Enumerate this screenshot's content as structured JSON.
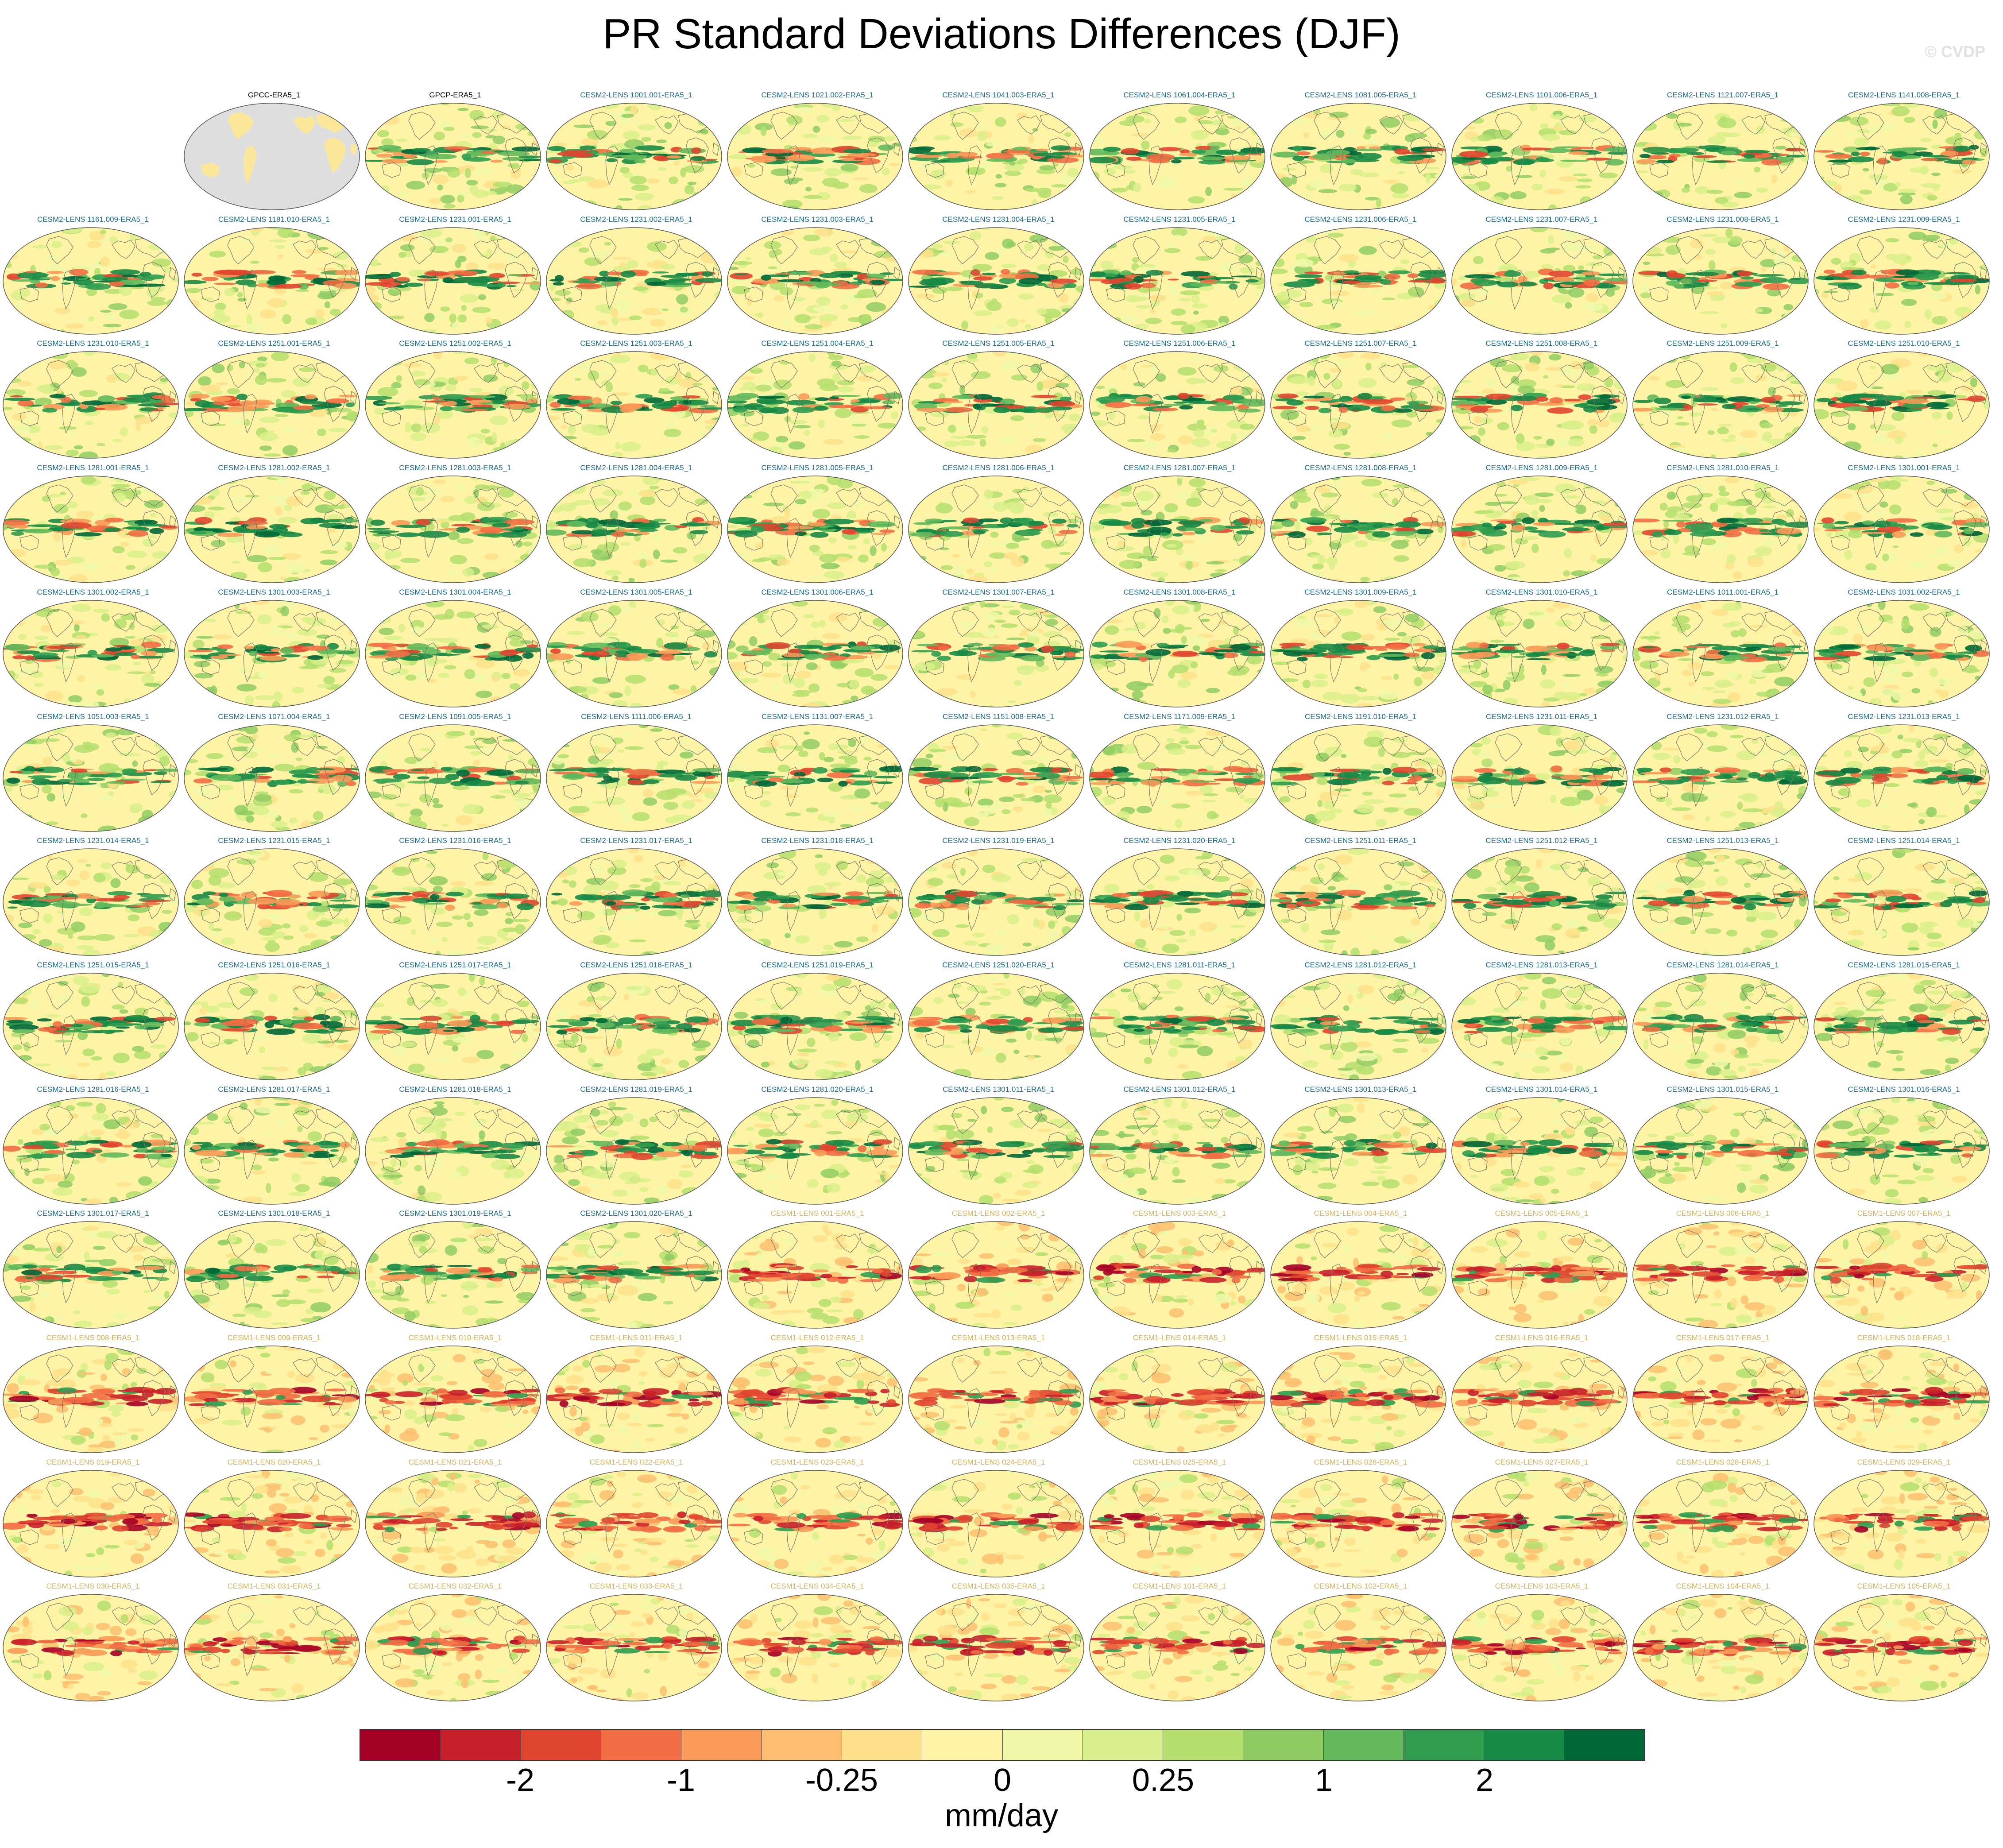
{
  "title": "PR Standard Deviations Differences (DJF)",
  "watermark": "© CVDP",
  "colorbar": {
    "colors": [
      "#a50026",
      "#c8202a",
      "#e0452f",
      "#f26d43",
      "#f99a58",
      "#fdbe70",
      "#fee08b",
      "#fff4a5",
      "#f0f8a8",
      "#d9ef8b",
      "#b4de6e",
      "#8fcb63",
      "#63b95c",
      "#2f9c4f",
      "#178a45",
      "#006837"
    ],
    "tick_labels": [
      "-2",
      "-1",
      "-0.25",
      "0",
      "0.25",
      "1",
      "2"
    ],
    "units": "mm/day"
  },
  "colors": {
    "obs_label": "#000000",
    "cesm2_label": "#1a6a8a",
    "cesm1_label": "#d6b35a"
  },
  "panels": [
    {
      "label": "GPCC-ERA5_1",
      "kind": "obs",
      "pattern": "land"
    },
    {
      "label": "GPCP-ERA5_1",
      "kind": "obs",
      "pattern": "mixed"
    },
    {
      "label": "CESM2-LENS 1001.001-ERA5_1",
      "kind": "cesm2",
      "pattern": "mixed"
    },
    {
      "label": "CESM2-LENS 1021.002-ERA5_1",
      "kind": "cesm2",
      "pattern": "mixed"
    },
    {
      "label": "CESM2-LENS 1041.003-ERA5_1",
      "kind": "cesm2",
      "pattern": "mixed"
    },
    {
      "label": "CESM2-LENS 1061.004-ERA5_1",
      "kind": "cesm2",
      "pattern": "mixed"
    },
    {
      "label": "CESM2-LENS 1081.005-ERA5_1",
      "kind": "cesm2",
      "pattern": "mixed"
    },
    {
      "label": "CESM2-LENS 1101.006-ERA5_1",
      "kind": "cesm2",
      "pattern": "mixed"
    },
    {
      "label": "CESM2-LENS 1121.007-ERA5_1",
      "kind": "cesm2",
      "pattern": "mixed"
    },
    {
      "label": "CESM2-LENS 1141.008-ERA5_1",
      "kind": "cesm2",
      "pattern": "mixed"
    },
    {
      "label": "CESM2-LENS 1161.009-ERA5_1",
      "kind": "cesm2",
      "pattern": "mixed"
    },
    {
      "label": "CESM2-LENS 1181.010-ERA5_1",
      "kind": "cesm2",
      "pattern": "mixed"
    },
    {
      "label": "CESM2-LENS 1231.001-ERA5_1",
      "kind": "cesm2",
      "pattern": "mixed"
    },
    {
      "label": "CESM2-LENS 1231.002-ERA5_1",
      "kind": "cesm2",
      "pattern": "mixed"
    },
    {
      "label": "CESM2-LENS 1231.003-ERA5_1",
      "kind": "cesm2",
      "pattern": "mixed"
    },
    {
      "label": "CESM2-LENS 1231.004-ERA5_1",
      "kind": "cesm2",
      "pattern": "mixed"
    },
    {
      "label": "CESM2-LENS 1231.005-ERA5_1",
      "kind": "cesm2",
      "pattern": "mixed"
    },
    {
      "label": "CESM2-LENS 1231.006-ERA5_1",
      "kind": "cesm2",
      "pattern": "mixed"
    },
    {
      "label": "CESM2-LENS 1231.007-ERA5_1",
      "kind": "cesm2",
      "pattern": "mixed"
    },
    {
      "label": "CESM2-LENS 1231.008-ERA5_1",
      "kind": "cesm2",
      "pattern": "mixed"
    },
    {
      "label": "CESM2-LENS 1231.009-ERA5_1",
      "kind": "cesm2",
      "pattern": "mixed"
    },
    {
      "label": "CESM2-LENS 1231.010-ERA5_1",
      "kind": "cesm2",
      "pattern": "mixed"
    },
    {
      "label": "CESM2-LENS 1251.001-ERA5_1",
      "kind": "cesm2",
      "pattern": "mixed"
    },
    {
      "label": "CESM2-LENS 1251.002-ERA5_1",
      "kind": "cesm2",
      "pattern": "mixed"
    },
    {
      "label": "CESM2-LENS 1251.003-ERA5_1",
      "kind": "cesm2",
      "pattern": "mixed"
    },
    {
      "label": "CESM2-LENS 1251.004-ERA5_1",
      "kind": "cesm2",
      "pattern": "mixed"
    },
    {
      "label": "CESM2-LENS 1251.005-ERA5_1",
      "kind": "cesm2",
      "pattern": "mixed"
    },
    {
      "label": "CESM2-LENS 1251.006-ERA5_1",
      "kind": "cesm2",
      "pattern": "mixed"
    },
    {
      "label": "CESM2-LENS 1251.007-ERA5_1",
      "kind": "cesm2",
      "pattern": "mixed"
    },
    {
      "label": "CESM2-LENS 1251.008-ERA5_1",
      "kind": "cesm2",
      "pattern": "mixed"
    },
    {
      "label": "CESM2-LENS 1251.009-ERA5_1",
      "kind": "cesm2",
      "pattern": "mixed"
    },
    {
      "label": "CESM2-LENS 1251.010-ERA5_1",
      "kind": "cesm2",
      "pattern": "mixed"
    },
    {
      "label": "CESM2-LENS 1281.001-ERA5_1",
      "kind": "cesm2",
      "pattern": "mixed"
    },
    {
      "label": "CESM2-LENS 1281.002-ERA5_1",
      "kind": "cesm2",
      "pattern": "mixed"
    },
    {
      "label": "CESM2-LENS 1281.003-ERA5_1",
      "kind": "cesm2",
      "pattern": "mixed"
    },
    {
      "label": "CESM2-LENS 1281.004-ERA5_1",
      "kind": "cesm2",
      "pattern": "mixed"
    },
    {
      "label": "CESM2-LENS 1281.005-ERA5_1",
      "kind": "cesm2",
      "pattern": "mixed"
    },
    {
      "label": "CESM2-LENS 1281.006-ERA5_1",
      "kind": "cesm2",
      "pattern": "mixed"
    },
    {
      "label": "CESM2-LENS 1281.007-ERA5_1",
      "kind": "cesm2",
      "pattern": "mixed"
    },
    {
      "label": "CESM2-LENS 1281.008-ERA5_1",
      "kind": "cesm2",
      "pattern": "mixed"
    },
    {
      "label": "CESM2-LENS 1281.009-ERA5_1",
      "kind": "cesm2",
      "pattern": "mixed"
    },
    {
      "label": "CESM2-LENS 1281.010-ERA5_1",
      "kind": "cesm2",
      "pattern": "mixed"
    },
    {
      "label": "CESM2-LENS 1301.001-ERA5_1",
      "kind": "cesm2",
      "pattern": "mixed"
    },
    {
      "label": "CESM2-LENS 1301.002-ERA5_1",
      "kind": "cesm2",
      "pattern": "mixed"
    },
    {
      "label": "CESM2-LENS 1301.003-ERA5_1",
      "kind": "cesm2",
      "pattern": "mixed"
    },
    {
      "label": "CESM2-LENS 1301.004-ERA5_1",
      "kind": "cesm2",
      "pattern": "mixed"
    },
    {
      "label": "CESM2-LENS 1301.005-ERA5_1",
      "kind": "cesm2",
      "pattern": "mixed"
    },
    {
      "label": "CESM2-LENS 1301.006-ERA5_1",
      "kind": "cesm2",
      "pattern": "mixed"
    },
    {
      "label": "CESM2-LENS 1301.007-ERA5_1",
      "kind": "cesm2",
      "pattern": "mixed"
    },
    {
      "label": "CESM2-LENS 1301.008-ERA5_1",
      "kind": "cesm2",
      "pattern": "mixed"
    },
    {
      "label": "CESM2-LENS 1301.009-ERA5_1",
      "kind": "cesm2",
      "pattern": "mixed"
    },
    {
      "label": "CESM2-LENS 1301.010-ERA5_1",
      "kind": "cesm2",
      "pattern": "mixed"
    },
    {
      "label": "CESM2-LENS 1011.001-ERA5_1",
      "kind": "cesm2",
      "pattern": "mixed"
    },
    {
      "label": "CESM2-LENS 1031.002-ERA5_1",
      "kind": "cesm2",
      "pattern": "mixed"
    },
    {
      "label": "CESM2-LENS 1051.003-ERA5_1",
      "kind": "cesm2",
      "pattern": "mixed"
    },
    {
      "label": "CESM2-LENS 1071.004-ERA5_1",
      "kind": "cesm2",
      "pattern": "mixed"
    },
    {
      "label": "CESM2-LENS 1091.005-ERA5_1",
      "kind": "cesm2",
      "pattern": "mixed"
    },
    {
      "label": "CESM2-LENS 1111.006-ERA5_1",
      "kind": "cesm2",
      "pattern": "mixed"
    },
    {
      "label": "CESM2-LENS 1131.007-ERA5_1",
      "kind": "cesm2",
      "pattern": "mixed"
    },
    {
      "label": "CESM2-LENS 1151.008-ERA5_1",
      "kind": "cesm2",
      "pattern": "mixed"
    },
    {
      "label": "CESM2-LENS 1171.009-ERA5_1",
      "kind": "cesm2",
      "pattern": "mixed"
    },
    {
      "label": "CESM2-LENS 1191.010-ERA5_1",
      "kind": "cesm2",
      "pattern": "mixed"
    },
    {
      "label": "CESM2-LENS 1231.011-ERA5_1",
      "kind": "cesm2",
      "pattern": "mixed"
    },
    {
      "label": "CESM2-LENS 1231.012-ERA5_1",
      "kind": "cesm2",
      "pattern": "mixed"
    },
    {
      "label": "CESM2-LENS 1231.013-ERA5_1",
      "kind": "cesm2",
      "pattern": "mixed"
    },
    {
      "label": "CESM2-LENS 1231.014-ERA5_1",
      "kind": "cesm2",
      "pattern": "mixed"
    },
    {
      "label": "CESM2-LENS 1231.015-ERA5_1",
      "kind": "cesm2",
      "pattern": "mixed"
    },
    {
      "label": "CESM2-LENS 1231.016-ERA5_1",
      "kind": "cesm2",
      "pattern": "mixed"
    },
    {
      "label": "CESM2-LENS 1231.017-ERA5_1",
      "kind": "cesm2",
      "pattern": "mixed"
    },
    {
      "label": "CESM2-LENS 1231.018-ERA5_1",
      "kind": "cesm2",
      "pattern": "mixed"
    },
    {
      "label": "CESM2-LENS 1231.019-ERA5_1",
      "kind": "cesm2",
      "pattern": "mixed"
    },
    {
      "label": "CESM2-LENS 1231.020-ERA5_1",
      "kind": "cesm2",
      "pattern": "mixed"
    },
    {
      "label": "CESM2-LENS 1251.011-ERA5_1",
      "kind": "cesm2",
      "pattern": "mixed"
    },
    {
      "label": "CESM2-LENS 1251.012-ERA5_1",
      "kind": "cesm2",
      "pattern": "mixed"
    },
    {
      "label": "CESM2-LENS 1251.013-ERA5_1",
      "kind": "cesm2",
      "pattern": "mixed"
    },
    {
      "label": "CESM2-LENS 1251.014-ERA5_1",
      "kind": "cesm2",
      "pattern": "mixed"
    },
    {
      "label": "CESM2-LENS 1251.015-ERA5_1",
      "kind": "cesm2",
      "pattern": "mixed"
    },
    {
      "label": "CESM2-LENS 1251.016-ERA5_1",
      "kind": "cesm2",
      "pattern": "mixed"
    },
    {
      "label": "CESM2-LENS 1251.017-ERA5_1",
      "kind": "cesm2",
      "pattern": "mixed"
    },
    {
      "label": "CESM2-LENS 1251.018-ERA5_1",
      "kind": "cesm2",
      "pattern": "mixed"
    },
    {
      "label": "CESM2-LENS 1251.019-ERA5_1",
      "kind": "cesm2",
      "pattern": "mixed"
    },
    {
      "label": "CESM2-LENS 1251.020-ERA5_1",
      "kind": "cesm2",
      "pattern": "mixed"
    },
    {
      "label": "CESM2-LENS 1281.011-ERA5_1",
      "kind": "cesm2",
      "pattern": "mixed"
    },
    {
      "label": "CESM2-LENS 1281.012-ERA5_1",
      "kind": "cesm2",
      "pattern": "mixed"
    },
    {
      "label": "CESM2-LENS 1281.013-ERA5_1",
      "kind": "cesm2",
      "pattern": "mixed"
    },
    {
      "label": "CESM2-LENS 1281.014-ERA5_1",
      "kind": "cesm2",
      "pattern": "mixed"
    },
    {
      "label": "CESM2-LENS 1281.015-ERA5_1",
      "kind": "cesm2",
      "pattern": "mixed"
    },
    {
      "label": "CESM2-LENS 1281.016-ERA5_1",
      "kind": "cesm2",
      "pattern": "mixed"
    },
    {
      "label": "CESM2-LENS 1281.017-ERA5_1",
      "kind": "cesm2",
      "pattern": "mixed"
    },
    {
      "label": "CESM2-LENS 1281.018-ERA5_1",
      "kind": "cesm2",
      "pattern": "mixed"
    },
    {
      "label": "CESM2-LENS 1281.019-ERA5_1",
      "kind": "cesm2",
      "pattern": "mixed"
    },
    {
      "label": "CESM2-LENS 1281.020-ERA5_1",
      "kind": "cesm2",
      "pattern": "mixed"
    },
    {
      "label": "CESM2-LENS 1301.011-ERA5_1",
      "kind": "cesm2",
      "pattern": "mixed"
    },
    {
      "label": "CESM2-LENS 1301.012-ERA5_1",
      "kind": "cesm2",
      "pattern": "mixed"
    },
    {
      "label": "CESM2-LENS 1301.013-ERA5_1",
      "kind": "cesm2",
      "pattern": "mixed"
    },
    {
      "label": "CESM2-LENS 1301.014-ERA5_1",
      "kind": "cesm2",
      "pattern": "mixed"
    },
    {
      "label": "CESM2-LENS 1301.015-ERA5_1",
      "kind": "cesm2",
      "pattern": "mixed"
    },
    {
      "label": "CESM2-LENS 1301.016-ERA5_1",
      "kind": "cesm2",
      "pattern": "mixed"
    },
    {
      "label": "CESM2-LENS 1301.017-ERA5_1",
      "kind": "cesm2",
      "pattern": "mixed"
    },
    {
      "label": "CESM2-LENS 1301.018-ERA5_1",
      "kind": "cesm2",
      "pattern": "mixed"
    },
    {
      "label": "CESM2-LENS 1301.019-ERA5_1",
      "kind": "cesm2",
      "pattern": "mixed"
    },
    {
      "label": "CESM2-LENS 1301.020-ERA5_1",
      "kind": "cesm2",
      "pattern": "mixed"
    },
    {
      "label": "CESM1-LENS 001-ERA5_1",
      "kind": "cesm1",
      "pattern": "red"
    },
    {
      "label": "CESM1-LENS 002-ERA5_1",
      "kind": "cesm1",
      "pattern": "red"
    },
    {
      "label": "CESM1-LENS 003-ERA5_1",
      "kind": "cesm1",
      "pattern": "red"
    },
    {
      "label": "CESM1-LENS 004-ERA5_1",
      "kind": "cesm1",
      "pattern": "red"
    },
    {
      "label": "CESM1-LENS 005-ERA5_1",
      "kind": "cesm1",
      "pattern": "red"
    },
    {
      "label": "CESM1-LENS 006-ERA5_1",
      "kind": "cesm1",
      "pattern": "red"
    },
    {
      "label": "CESM1-LENS 007-ERA5_1",
      "kind": "cesm1",
      "pattern": "red"
    },
    {
      "label": "CESM1-LENS 008-ERA5_1",
      "kind": "cesm1",
      "pattern": "red"
    },
    {
      "label": "CESM1-LENS 009-ERA5_1",
      "kind": "cesm1",
      "pattern": "red"
    },
    {
      "label": "CESM1-LENS 010-ERA5_1",
      "kind": "cesm1",
      "pattern": "red"
    },
    {
      "label": "CESM1-LENS 011-ERA5_1",
      "kind": "cesm1",
      "pattern": "red"
    },
    {
      "label": "CESM1-LENS 012-ERA5_1",
      "kind": "cesm1",
      "pattern": "red"
    },
    {
      "label": "CESM1-LENS 013-ERA5_1",
      "kind": "cesm1",
      "pattern": "red"
    },
    {
      "label": "CESM1-LENS 014-ERA5_1",
      "kind": "cesm1",
      "pattern": "red"
    },
    {
      "label": "CESM1-LENS 015-ERA5_1",
      "kind": "cesm1",
      "pattern": "red"
    },
    {
      "label": "CESM1-LENS 016-ERA5_1",
      "kind": "cesm1",
      "pattern": "red"
    },
    {
      "label": "CESM1-LENS 017-ERA5_1",
      "kind": "cesm1",
      "pattern": "red"
    },
    {
      "label": "CESM1-LENS 018-ERA5_1",
      "kind": "cesm1",
      "pattern": "red"
    },
    {
      "label": "CESM1-LENS 019-ERA5_1",
      "kind": "cesm1",
      "pattern": "red"
    },
    {
      "label": "CESM1-LENS 020-ERA5_1",
      "kind": "cesm1",
      "pattern": "red"
    },
    {
      "label": "CESM1-LENS 021-ERA5_1",
      "kind": "cesm1",
      "pattern": "red"
    },
    {
      "label": "CESM1-LENS 022-ERA5_1",
      "kind": "cesm1",
      "pattern": "red"
    },
    {
      "label": "CESM1-LENS 023-ERA5_1",
      "kind": "cesm1",
      "pattern": "red"
    },
    {
      "label": "CESM1-LENS 024-ERA5_1",
      "kind": "cesm1",
      "pattern": "red"
    },
    {
      "label": "CESM1-LENS 025-ERA5_1",
      "kind": "cesm1",
      "pattern": "red"
    },
    {
      "label": "CESM1-LENS 026-ERA5_1",
      "kind": "cesm1",
      "pattern": "red"
    },
    {
      "label": "CESM1-LENS 027-ERA5_1",
      "kind": "cesm1",
      "pattern": "red"
    },
    {
      "label": "CESM1-LENS 028-ERA5_1",
      "kind": "cesm1",
      "pattern": "red"
    },
    {
      "label": "CESM1-LENS 029-ERA5_1",
      "kind": "cesm1",
      "pattern": "red"
    },
    {
      "label": "CESM1-LENS 030-ERA5_1",
      "kind": "cesm1",
      "pattern": "red"
    },
    {
      "label": "CESM1-LENS 031-ERA5_1",
      "kind": "cesm1",
      "pattern": "red"
    },
    {
      "label": "CESM1-LENS 032-ERA5_1",
      "kind": "cesm1",
      "pattern": "red"
    },
    {
      "label": "CESM1-LENS 033-ERA5_1",
      "kind": "cesm1",
      "pattern": "red"
    },
    {
      "label": "CESM1-LENS 034-ERA5_1",
      "kind": "cesm1",
      "pattern": "red"
    },
    {
      "label": "CESM1-LENS 035-ERA5_1",
      "kind": "cesm1",
      "pattern": "red"
    },
    {
      "label": "CESM1-LENS 101-ERA5_1",
      "kind": "cesm1",
      "pattern": "red"
    },
    {
      "label": "CESM1-LENS 102-ERA5_1",
      "kind": "cesm1",
      "pattern": "red"
    },
    {
      "label": "CESM1-LENS 103-ERA5_1",
      "kind": "cesm1",
      "pattern": "red"
    },
    {
      "label": "CESM1-LENS 104-ERA5_1",
      "kind": "cesm1",
      "pattern": "red"
    },
    {
      "label": "CESM1-LENS 105-ERA5_1",
      "kind": "cesm1",
      "pattern": "red"
    }
  ]
}
